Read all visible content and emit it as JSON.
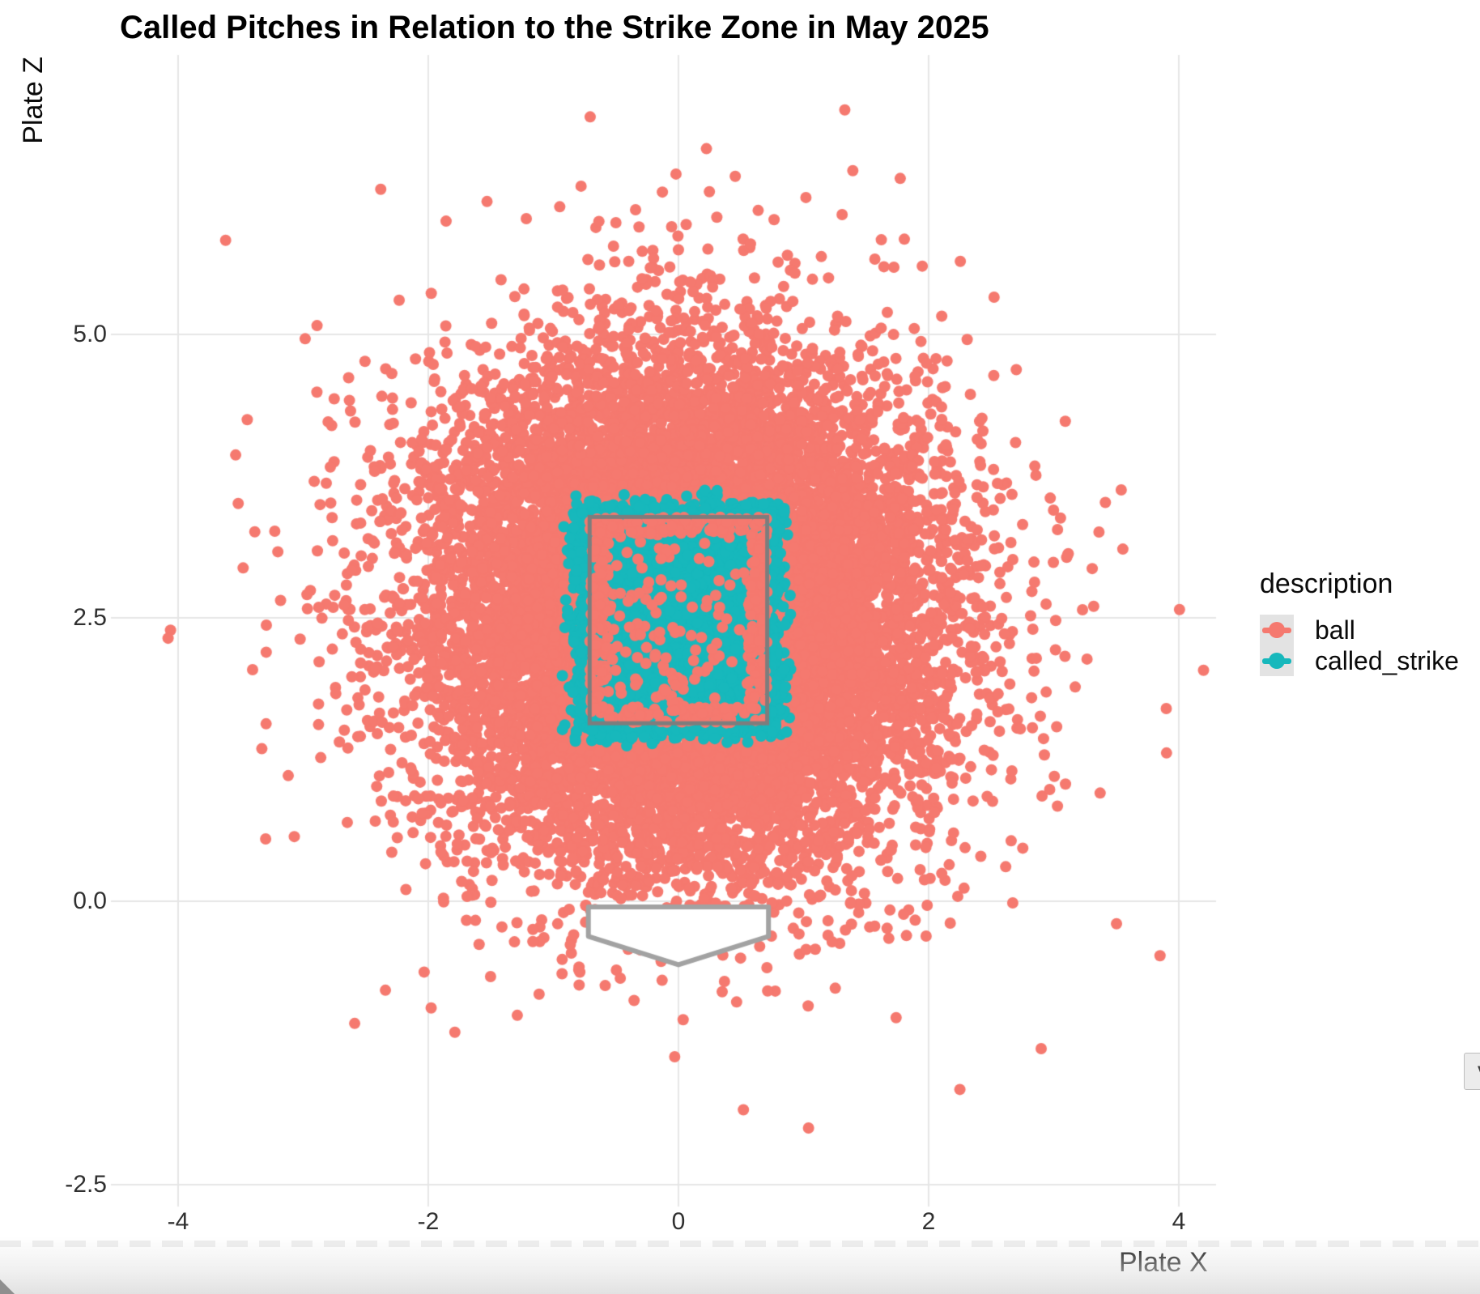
{
  "chart_data": {
    "type": "scatter",
    "title": "Called Pitches in Relation to the Strike Zone in May 2025",
    "x_axis": {
      "label": "Plate X",
      "ticks": [
        {
          "value": -4,
          "label": "-4"
        },
        {
          "value": -2,
          "label": "-2"
        },
        {
          "value": 0,
          "label": "0"
        },
        {
          "value": 2,
          "label": "2"
        },
        {
          "value": 4,
          "label": "4"
        }
      ],
      "lim": [
        -4.537,
        4.298
      ]
    },
    "y_axis": {
      "label": "Plate Z",
      "ticks": [
        {
          "value": 5.0,
          "label": "5.0"
        },
        {
          "value": 2.5,
          "label": "2.5"
        },
        {
          "value": 0.0,
          "label": "0.0"
        },
        {
          "value": -2.5,
          "label": "-2.5"
        }
      ],
      "lim": [
        -2.693,
        7.464
      ]
    },
    "grid": {
      "show": true,
      "color": "#E6E6E6",
      "width": 2
    },
    "panel_background": "#FFFFFF",
    "legend": {
      "title": "description",
      "position": "right",
      "key_background": "#E3E3E3",
      "entries": [
        {
          "label": "ball",
          "color": "#F5796F"
        },
        {
          "label": "called_strike",
          "color": "#17B8BC"
        }
      ]
    },
    "strike_zone": {
      "x_min": -0.71,
      "x_max": 0.71,
      "z_min": 1.57,
      "z_max": 3.39,
      "stroke": "#7D7D7D",
      "stroke_width": 5
    },
    "home_plate": {
      "vertices": [
        [
          -0.72,
          -0.05
        ],
        [
          0.72,
          -0.05
        ],
        [
          0.72,
          -0.31
        ],
        [
          0,
          -0.56
        ],
        [
          -0.72,
          -0.31
        ]
      ],
      "stroke": "#A2A2A2",
      "fill": "#FFFFFF",
      "stroke_width": 6
    },
    "point_radius_px": 7,
    "series": [
      {
        "name": "ball",
        "color": "#F5796F",
        "approx_n": 11500,
        "distribution": {
          "center": [
            0.03,
            2.55
          ],
          "sd": [
            1.0,
            1.1
          ]
        },
        "in_zone_keep_core": 0.035,
        "in_zone_keep_edge": 0.3,
        "zone_edge_band": 0.15
      },
      {
        "name": "called_strike",
        "color": "#17B8BC",
        "approx_n": 5200,
        "fills_region": "strike_zone",
        "max_overflow": 0.28,
        "edge_fuzz": 0.09
      }
    ],
    "notable_points": [
      {
        "series": "ball",
        "x": 1.33,
        "z": 6.98
      },
      {
        "series": "ball",
        "x": -4.08,
        "z": 2.32
      },
      {
        "series": "ball",
        "x": -3.48,
        "z": 2.94
      },
      {
        "series": "ball",
        "x": -3.62,
        "z": 5.83
      },
      {
        "series": "ball",
        "x": -2.38,
        "z": 6.28
      },
      {
        "series": "ball",
        "x": -3.3,
        "z": 0.55
      },
      {
        "series": "ball",
        "x": 1.04,
        "z": -2.0
      },
      {
        "series": "ball",
        "x": 2.25,
        "z": -1.66
      },
      {
        "series": "ball",
        "x": 2.9,
        "z": -1.3
      },
      {
        "series": "ball",
        "x": 3.9,
        "z": 1.7
      },
      {
        "series": "ball",
        "x": 3.85,
        "z": -0.48
      }
    ],
    "random_seed": 20250531
  },
  "ui": {
    "edge_button": {
      "label": "v"
    }
  }
}
